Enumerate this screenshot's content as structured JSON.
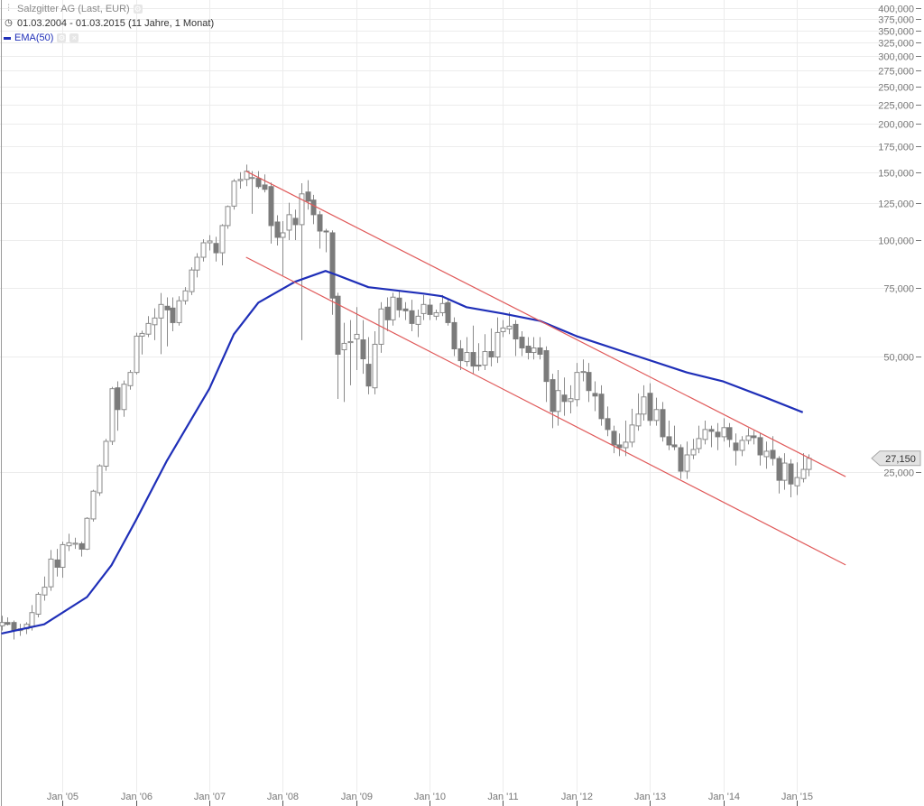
{
  "legend": {
    "instrument": "Salzgitter AG (Last, EUR)",
    "date_range": "01.03.2004 - 01.03.2015 (11 Jahre, 1 Monat)",
    "indicator": "EMA(50)",
    "icons": [
      "chart-type-icon",
      "gear-icon",
      "clock-icon",
      "gear-icon",
      "close-icon"
    ]
  },
  "chart_data": {
    "type": "candlestick",
    "scale": "log",
    "interval": "monthly",
    "first_period": "2004-03",
    "ylim": [
      8000,
      400000
    ],
    "grid": true,
    "y_ticks": [
      400000,
      375000,
      350000,
      325000,
      300000,
      275000,
      250000,
      225000,
      200000,
      175000,
      150000,
      125000,
      100000,
      75000,
      50000,
      25000
    ],
    "y_tick_labels": [
      "400,000",
      "375,000",
      "350,000",
      "325,000",
      "300,000",
      "275,000",
      "250,000",
      "225,000",
      "200,000",
      "175,000",
      "150,000",
      "125,000",
      "100,000",
      "75,000",
      "50,000",
      "25,000"
    ],
    "x_ticks": [
      "2005-01",
      "2006-01",
      "2007-01",
      "2008-01",
      "2009-01",
      "2010-01",
      "2011-01",
      "2012-01",
      "2013-01",
      "2014-01",
      "2015-01"
    ],
    "x_tick_labels": [
      "Jan '05",
      "Jan '06",
      "Jan '07",
      "Jan '08",
      "Jan '09",
      "Jan '10",
      "Jan '11",
      "Jan '12",
      "Jan '13",
      "Jan '14",
      "Jan '15"
    ],
    "last_price": 27150,
    "last_price_label": "27,150",
    "colors": {
      "up_body": "#ffffff",
      "down_body": "#7b7b7b",
      "outline": "#8a8a8a",
      "ema": "#1f2fb8",
      "trendline": "#e05a5a",
      "grid": "#ececec"
    },
    "ohlc": [
      [
        9980,
        10600,
        9700,
        10180
      ],
      [
        10180,
        10500,
        10000,
        10070
      ],
      [
        10180,
        10300,
        9200,
        9700
      ],
      [
        9700,
        10100,
        9400,
        9800
      ],
      [
        9800,
        10200,
        9500,
        10070
      ],
      [
        9950,
        11300,
        9700,
        10800
      ],
      [
        10700,
        12200,
        10500,
        12050
      ],
      [
        12000,
        13400,
        11600,
        12570
      ],
      [
        12600,
        15700,
        12300,
        14870
      ],
      [
        14790,
        15800,
        13400,
        14160
      ],
      [
        14160,
        16500,
        13300,
        16210
      ],
      [
        16100,
        17300,
        15600,
        16390
      ],
      [
        16250,
        16900,
        15800,
        16350
      ],
      [
        16300,
        16500,
        15100,
        15780
      ],
      [
        15780,
        19100,
        15700,
        18970
      ],
      [
        18900,
        22500,
        18600,
        22310
      ],
      [
        22100,
        26200,
        21700,
        25960
      ],
      [
        25900,
        30500,
        25200,
        30050
      ],
      [
        30050,
        41600,
        29400,
        41150
      ],
      [
        41370,
        43000,
        32000,
        36330
      ],
      [
        36330,
        43200,
        34800,
        42270
      ],
      [
        41900,
        46000,
        40900,
        45350
      ],
      [
        45350,
        57500,
        44800,
        56330
      ],
      [
        56330,
        58200,
        50500,
        57250
      ],
      [
        57000,
        63500,
        56000,
        60760
      ],
      [
        60300,
        66500,
        55000,
        62770
      ],
      [
        62770,
        72900,
        50600,
        68070
      ],
      [
        67350,
        71000,
        53000,
        65900
      ],
      [
        66620,
        71000,
        58000,
        61080
      ],
      [
        61080,
        71500,
        60000,
        69580
      ],
      [
        69580,
        75500,
        68000,
        73850
      ],
      [
        73500,
        85000,
        72000,
        83630
      ],
      [
        83600,
        92500,
        80000,
        90250
      ],
      [
        90250,
        100500,
        88000,
        98400
      ],
      [
        98400,
        103000,
        94000,
        99470
      ],
      [
        98000,
        102000,
        88000,
        92700
      ],
      [
        92700,
        110000,
        86000,
        109050
      ],
      [
        109050,
        123000,
        107000,
        122200
      ],
      [
        122500,
        144000,
        120000,
        142200
      ],
      [
        142600,
        150000,
        136000,
        143700
      ],
      [
        143700,
        157000,
        138000,
        150900
      ],
      [
        145000,
        151000,
        117000,
        145300
      ],
      [
        144600,
        151000,
        136000,
        137650
      ],
      [
        139000,
        148000,
        133000,
        135450
      ],
      [
        137650,
        141000,
        97900,
        109050
      ],
      [
        111400,
        116000,
        96800,
        101650
      ],
      [
        101650,
        112000,
        81000,
        104430
      ],
      [
        106130,
        125000,
        100000,
        116380
      ],
      [
        113870,
        120000,
        100000,
        109650
      ],
      [
        109650,
        140500,
        55000,
        131800
      ],
      [
        133250,
        143000,
        120000,
        126230
      ],
      [
        127000,
        131000,
        110000,
        116380
      ],
      [
        116380,
        119000,
        95000,
        105550
      ],
      [
        105550,
        107000,
        93000,
        105000
      ],
      [
        104430,
        106000,
        64000,
        70710
      ],
      [
        71500,
        73000,
        38700,
        50550
      ],
      [
        51930,
        61000,
        38000,
        53950
      ],
      [
        54200,
        62000,
        42000,
        54530
      ],
      [
        55400,
        67000,
        46000,
        56940
      ],
      [
        55100,
        62000,
        45000,
        49200
      ],
      [
        47620,
        56000,
        39800,
        41820
      ],
      [
        41370,
        58000,
        39800,
        53660
      ],
      [
        53660,
        69000,
        51000,
        66260
      ],
      [
        66980,
        71000,
        58000,
        62100
      ],
      [
        62100,
        73000,
        60000,
        71100
      ],
      [
        70710,
        74000,
        63000,
        65900
      ],
      [
        66260,
        69000,
        62000,
        65550
      ],
      [
        65550,
        70000,
        58000,
        60760
      ],
      [
        60430,
        66000,
        56000,
        63450
      ],
      [
        64470,
        72000,
        62000,
        68070
      ],
      [
        67800,
        70500,
        62000,
        64120
      ],
      [
        63450,
        66000,
        62000,
        64800
      ],
      [
        64800,
        72000,
        63500,
        68440
      ],
      [
        68810,
        70000,
        60000,
        61080
      ],
      [
        61080,
        63000,
        50000,
        52220
      ],
      [
        52220,
        55000,
        46000,
        48660
      ],
      [
        48400,
        56000,
        47000,
        51090
      ],
      [
        51090,
        60000,
        45000,
        47110
      ],
      [
        47360,
        54000,
        45800,
        47110
      ],
      [
        47360,
        57000,
        46000,
        51370
      ],
      [
        51370,
        59000,
        47000,
        49730
      ],
      [
        49730,
        63000,
        48000,
        57560
      ],
      [
        57870,
        62000,
        56000,
        59140
      ],
      [
        58820,
        65000,
        57000,
        59790
      ],
      [
        60430,
        62000,
        50000,
        55400
      ],
      [
        55990,
        58000,
        50000,
        52500
      ],
      [
        53070,
        56000,
        49000,
        51090
      ],
      [
        51090,
        56000,
        49000,
        52500
      ],
      [
        52500,
        56000,
        49000,
        50550
      ],
      [
        51650,
        53000,
        38000,
        42970
      ],
      [
        43440,
        45000,
        32500,
        35930
      ],
      [
        35930,
        46000,
        33000,
        40700
      ],
      [
        39610,
        44000,
        35000,
        38130
      ],
      [
        38130,
        42000,
        35500,
        38770
      ],
      [
        38560,
        48000,
        37000,
        45350
      ],
      [
        45350,
        49000,
        43000,
        45600
      ],
      [
        45350,
        48000,
        38000,
        40700
      ],
      [
        40000,
        43000,
        36000,
        39390
      ],
      [
        39830,
        42000,
        33000,
        34410
      ],
      [
        34410,
        37000,
        31000,
        32250
      ],
      [
        31900,
        33000,
        28000,
        29410
      ],
      [
        29410,
        31500,
        27500,
        28930
      ],
      [
        28930,
        34000,
        27500,
        29900
      ],
      [
        29900,
        36500,
        29000,
        33130
      ],
      [
        32950,
        40000,
        32000,
        35360
      ],
      [
        35360,
        42000,
        34000,
        39180
      ],
      [
        40040,
        42500,
        33000,
        34040
      ],
      [
        34040,
        39000,
        33000,
        36330
      ],
      [
        36330,
        38000,
        30000,
        30880
      ],
      [
        30880,
        34000,
        28500,
        29410
      ],
      [
        29410,
        33000,
        28500,
        29090
      ],
      [
        28930,
        29500,
        24000,
        25140
      ],
      [
        25140,
        30000,
        24000,
        27710
      ],
      [
        27710,
        30500,
        27000,
        28620
      ],
      [
        28780,
        33000,
        28000,
        30550
      ],
      [
        30390,
        34000,
        29500,
        32250
      ],
      [
        32250,
        33000,
        29000,
        31900
      ],
      [
        31730,
        33500,
        28500,
        30880
      ],
      [
        30880,
        34500,
        30000,
        32610
      ],
      [
        32610,
        33500,
        29000,
        30390
      ],
      [
        29740,
        31500,
        26000,
        28470
      ],
      [
        28470,
        31000,
        27500,
        30220
      ],
      [
        30220,
        32500,
        29500,
        31040
      ],
      [
        31040,
        32000,
        29500,
        30720
      ],
      [
        30720,
        31500,
        26000,
        27710
      ],
      [
        27420,
        30000,
        25500,
        28320
      ],
      [
        28470,
        31000,
        26000,
        27120
      ],
      [
        27120,
        27500,
        22000,
        23810
      ],
      [
        23810,
        28000,
        22500,
        26390
      ],
      [
        26250,
        27000,
        21500,
        23290
      ],
      [
        23040,
        26500,
        21800,
        24200
      ],
      [
        24060,
        28000,
        23500,
        25410
      ],
      [
        25410,
        27800,
        24400,
        27150
      ]
    ],
    "ema50": [
      [
        "2004-03",
        9530
      ],
      [
        "2004-10",
        10070
      ],
      [
        "2005-05",
        11850
      ],
      [
        "2005-09",
        14330
      ],
      [
        "2006-01",
        18760
      ],
      [
        "2006-06",
        26670
      ],
      [
        "2007-01",
        41150
      ],
      [
        "2007-05",
        56940
      ],
      [
        "2007-09",
        68810
      ],
      [
        "2008-03",
        77950
      ],
      [
        "2008-08",
        83180
      ],
      [
        "2008-10",
        81000
      ],
      [
        "2009-03",
        75450
      ],
      [
        "2009-12",
        72650
      ],
      [
        "2010-03",
        71500
      ],
      [
        "2010-07",
        66980
      ],
      [
        "2011-01",
        64470
      ],
      [
        "2011-07",
        61760
      ],
      [
        "2012-01",
        56330
      ],
      [
        "2012-10",
        50550
      ],
      [
        "2013-07",
        45350
      ],
      [
        "2014-01",
        42970
      ],
      [
        "2014-08",
        38980
      ],
      [
        "2015-02",
        35740
      ]
    ],
    "trendlines": [
      {
        "from": [
          "2007-07",
          150900
        ],
        "to": [
          "2015-09",
          24340
        ]
      },
      {
        "from": [
          "2007-07",
          90250
        ],
        "to": [
          "2015-09",
          14360
        ]
      }
    ]
  }
}
